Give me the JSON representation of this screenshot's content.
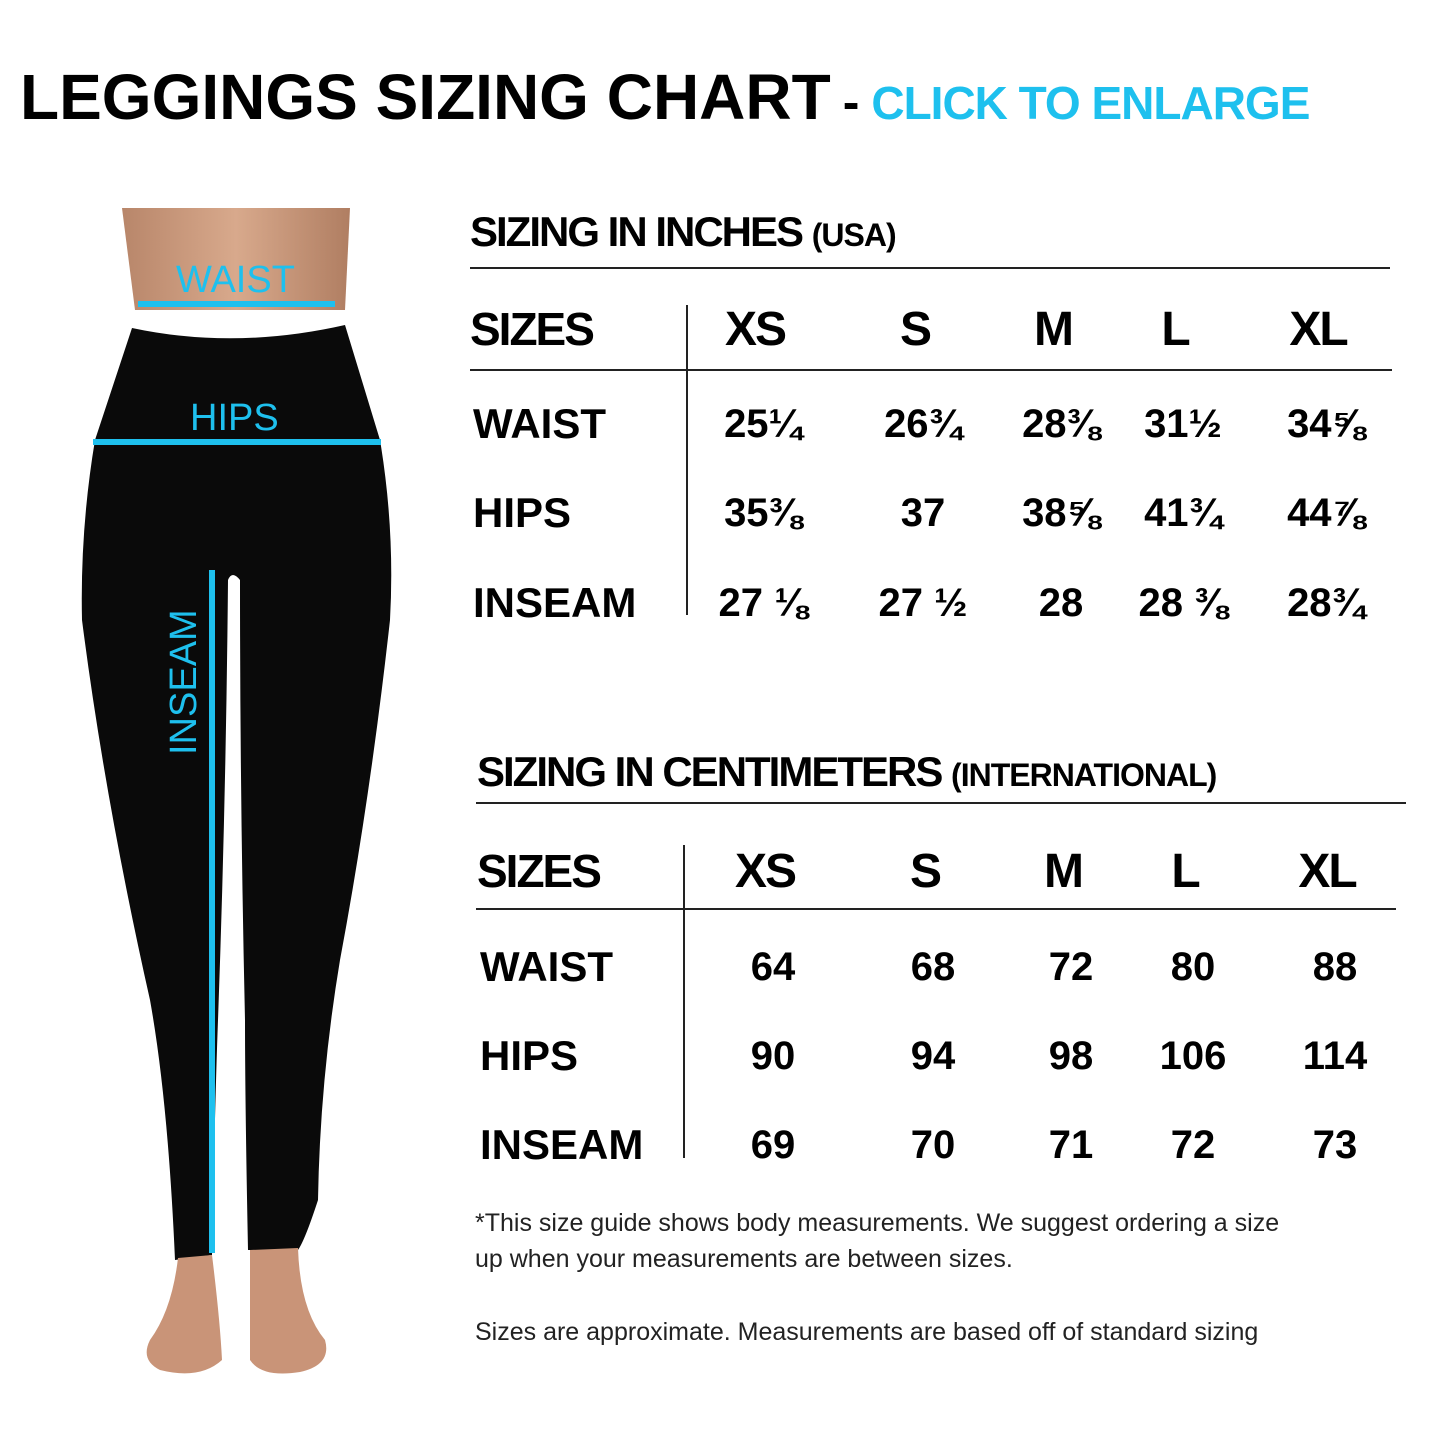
{
  "header": {
    "title": "LEGGINGS SIZING CHART",
    "separator": "-",
    "cta": "CLICK TO ENLARGE"
  },
  "colors": {
    "accent": "#1ec0ee",
    "text": "#000000"
  },
  "figure": {
    "labels": {
      "waist": "WAIST",
      "hips": "HIPS",
      "inseam": "INSEAM"
    }
  },
  "inches": {
    "title": "SIZING IN INCHES",
    "qualifier": "(USA)",
    "sizes_label": "SIZES",
    "sizes": [
      "XS",
      "S",
      "M",
      "L",
      "XL"
    ],
    "rows": [
      {
        "label": "WAIST",
        "values": [
          "25¼",
          "26¾",
          "28⅜",
          "31½",
          "34⅝"
        ]
      },
      {
        "label": "HIPS",
        "values": [
          "35⅜",
          "37",
          "38⅝",
          "41¾",
          "44⅞"
        ]
      },
      {
        "label": "INSEAM",
        "values": [
          "27 ⅛",
          "27 ½",
          "28",
          "28 ⅜",
          "28¾"
        ]
      }
    ]
  },
  "cm": {
    "title": "SIZING IN CENTIMETERS",
    "qualifier": "(INTERNATIONAL)",
    "sizes_label": "SIZES",
    "sizes": [
      "XS",
      "S",
      "M",
      "L",
      "XL"
    ],
    "rows": [
      {
        "label": "WAIST",
        "values": [
          "64",
          "68",
          "72",
          "80",
          "88"
        ]
      },
      {
        "label": "HIPS",
        "values": [
          "90",
          "94",
          "98",
          "106",
          "114"
        ]
      },
      {
        "label": "INSEAM",
        "values": [
          "69",
          "70",
          "71",
          "72",
          "73"
        ]
      }
    ]
  },
  "notes": {
    "line1": "*This size guide shows body measurements. We suggest ordering a size",
    "line2": "up when your measurements are between sizes.",
    "line3": "Sizes are approximate. Measurements are based off of standard sizing"
  }
}
